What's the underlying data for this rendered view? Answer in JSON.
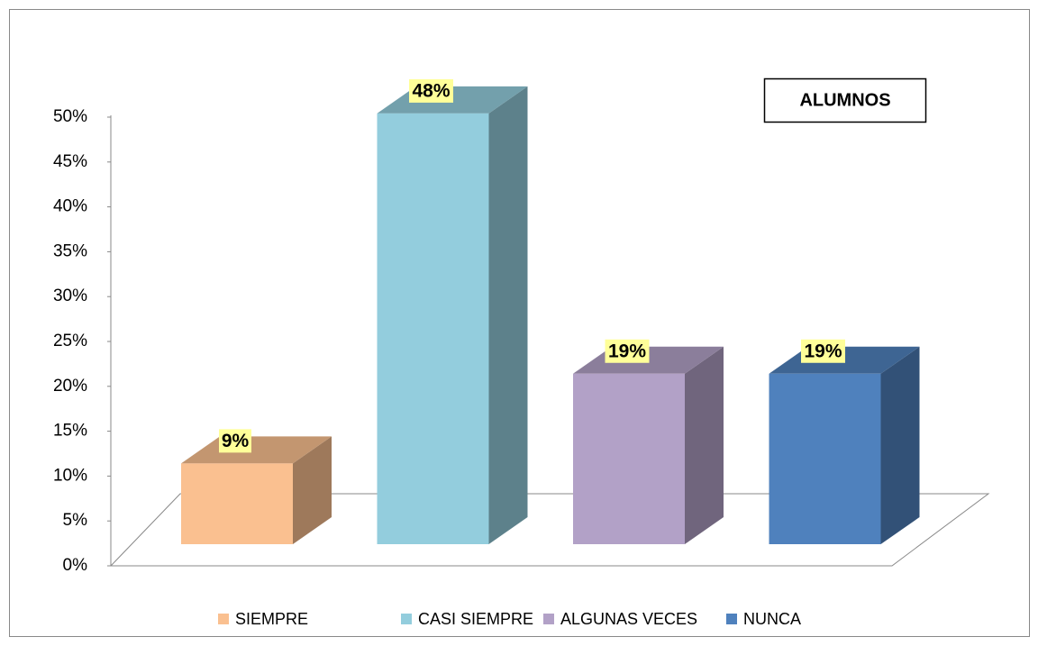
{
  "chart_data": {
    "type": "bar3d",
    "title": "ALUMNOS",
    "categories": [
      "SIEMPRE",
      "CASI SIEMPRE",
      "ALGUNAS VECES",
      "NUNCA"
    ],
    "values": [
      9,
      48,
      19,
      19
    ],
    "value_labels": [
      "9%",
      "48%",
      "19%",
      "19%"
    ],
    "colors": [
      "#FAC090",
      "#93CDDD",
      "#B2A1C7",
      "#4F81BD"
    ],
    "ylim": [
      0,
      50
    ],
    "yticks": [
      {
        "value": 0,
        "label": "0%"
      },
      {
        "value": 5,
        "label": "5%"
      },
      {
        "value": 10,
        "label": "10%"
      },
      {
        "value": 15,
        "label": "15%"
      },
      {
        "value": 20,
        "label": "20%"
      },
      {
        "value": 25,
        "label": "25%"
      },
      {
        "value": 30,
        "label": "30%"
      },
      {
        "value": 35,
        "label": "35%"
      },
      {
        "value": 40,
        "label": "40%"
      },
      {
        "value": 45,
        "label": "45%"
      },
      {
        "value": 50,
        "label": "50%"
      }
    ],
    "grid": false,
    "legend": "bottom"
  }
}
